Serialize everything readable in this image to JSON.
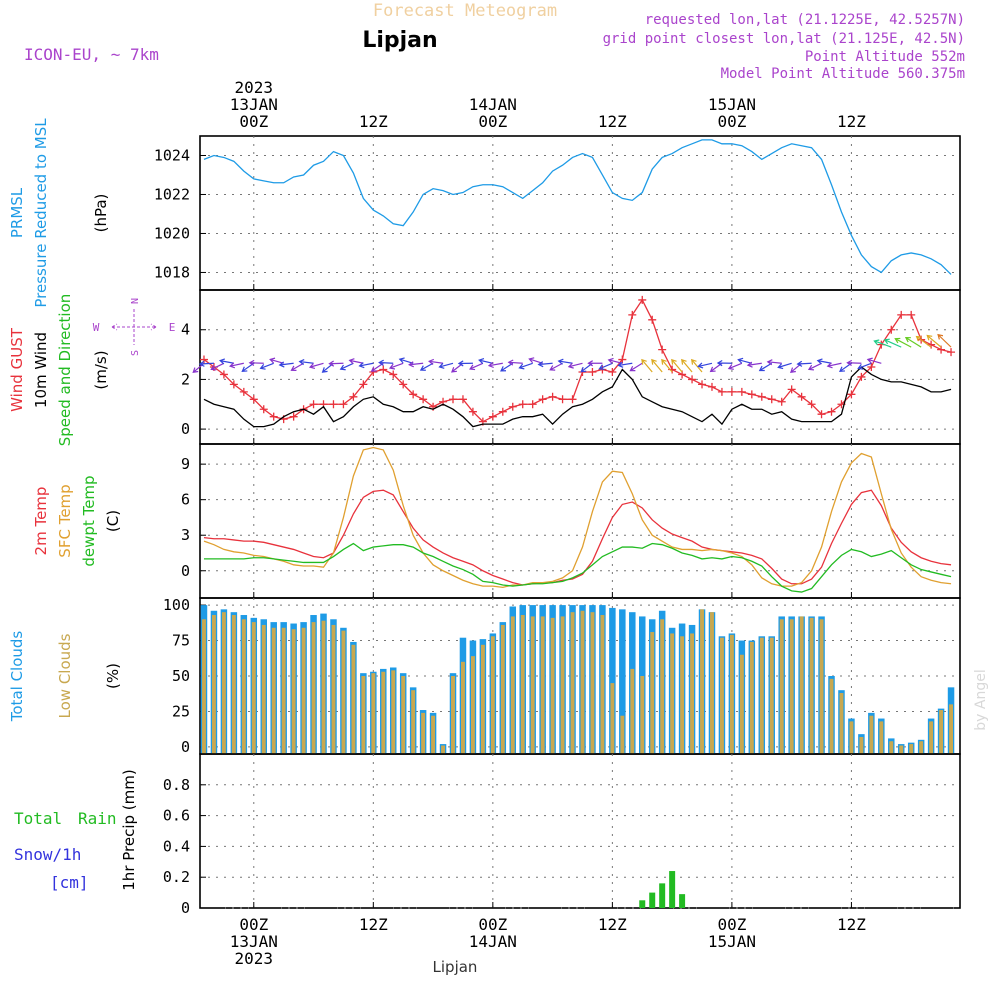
{
  "header": {
    "product": "Forecast Meteogram",
    "location": "Lipjan",
    "model": "ICON-EU, ~ 7km",
    "requested": "requested lon,lat (21.1225E, 42.5257N)",
    "gridpoint": "grid point closest lon,lat (21.125E, 42.5N)",
    "altitude": "Point Altitude 552m",
    "model_altitude": "Model Point Altitude 560.375m",
    "footer_location": "Lipjan",
    "watermark": "by Angel"
  },
  "time_axis": {
    "ticks": [
      {
        "h": 0,
        "lines": [
          "2023",
          "13JAN",
          "00Z"
        ],
        "bottom": [
          "00Z",
          "13JAN",
          "2023"
        ]
      },
      {
        "h": 12,
        "lines": [
          "12Z"
        ],
        "bottom": [
          "12Z"
        ]
      },
      {
        "h": 24,
        "lines": [
          "14JAN",
          "00Z"
        ],
        "bottom": [
          "00Z",
          "14JAN"
        ]
      },
      {
        "h": 36,
        "lines": [
          "12Z"
        ],
        "bottom": [
          "12Z"
        ]
      },
      {
        "h": 48,
        "lines": [
          "15JAN",
          "00Z"
        ],
        "bottom": [
          "00Z",
          "15JAN"
        ]
      },
      {
        "h": 60,
        "lines": [
          "12Z"
        ],
        "bottom": [
          "12Z"
        ]
      }
    ],
    "range_hours": [
      -5.4,
      70.9
    ]
  },
  "colors": {
    "prmsl": "#1e9be6",
    "gust": "#e8323c",
    "wind": "#000000",
    "wind_label": "#22bb22",
    "temp2m": "#e8323c",
    "sfc": "#e0a030",
    "dew": "#22bb22",
    "total_clouds": "#1e9be6",
    "low_clouds": "#c8a850",
    "rain": "#22bb22",
    "snow": "#3333dd",
    "purple": "#aa44cc"
  },
  "chart_data": [
    {
      "type": "line",
      "name": "pressure",
      "label_lines": [
        "PRMSL",
        "Pressure Reduced to MSL"
      ],
      "unit": "(hPa)",
      "ylim": [
        1017.1,
        1025.0
      ],
      "yticks": [
        1018,
        1020,
        1022,
        1024
      ],
      "x": [
        -5,
        -4,
        -3,
        -2,
        -1,
        0,
        1,
        2,
        3,
        4,
        5,
        6,
        7,
        8,
        9,
        10,
        11,
        12,
        13,
        14,
        15,
        16,
        17,
        18,
        19,
        20,
        21,
        22,
        23,
        24,
        25,
        26,
        27,
        28,
        29,
        30,
        31,
        32,
        33,
        34,
        35,
        36,
        37,
        38,
        39,
        40,
        41,
        42,
        43,
        44,
        45,
        46,
        47,
        48,
        49,
        50,
        51,
        52,
        53,
        54,
        55,
        56,
        57,
        58,
        59,
        60,
        61,
        62,
        63,
        64,
        65,
        66,
        67,
        68,
        69,
        70
      ],
      "series": [
        {
          "values": [
            1023.8,
            1024.0,
            1023.9,
            1023.7,
            1023.2,
            1022.8,
            1022.7,
            1022.6,
            1022.6,
            1022.9,
            1023.0,
            1023.5,
            1023.7,
            1024.2,
            1024.0,
            1023.1,
            1021.8,
            1021.2,
            1020.9,
            1020.5,
            1020.4,
            1021.1,
            1022.0,
            1022.3,
            1022.2,
            1022.0,
            1022.1,
            1022.4,
            1022.5,
            1022.5,
            1022.4,
            1022.1,
            1021.8,
            1022.2,
            1022.6,
            1023.2,
            1023.5,
            1023.9,
            1024.1,
            1023.9,
            1023.0,
            1022.1,
            1021.8,
            1021.7,
            1022.1,
            1023.3,
            1023.9,
            1024.1,
            1024.4,
            1024.6,
            1024.8,
            1024.8,
            1024.6,
            1024.6,
            1024.5,
            1024.2,
            1023.8,
            1024.1,
            1024.4,
            1024.6,
            1024.5,
            1024.4,
            1023.8,
            1022.5,
            1021.1,
            1019.9,
            1018.9,
            1018.3,
            1018.0,
            1018.6,
            1018.9,
            1019.0,
            1018.9,
            1018.7,
            1018.4,
            1017.9
          ]
        }
      ]
    },
    {
      "type": "line",
      "name": "wind",
      "label_lines": [
        "Wind GUST",
        "10m Wind",
        "Speed and Direction"
      ],
      "unit": "(m/s)",
      "compass": {
        "n": "N",
        "w": "W",
        "e": "E",
        "s": "S"
      },
      "ylim": [
        -0.6,
        5.6
      ],
      "yticks": [
        0,
        2,
        4
      ],
      "x": [
        -5,
        -4,
        -3,
        -2,
        -1,
        0,
        1,
        2,
        3,
        4,
        5,
        6,
        7,
        8,
        9,
        10,
        11,
        12,
        13,
        14,
        15,
        16,
        17,
        18,
        19,
        20,
        21,
        22,
        23,
        24,
        25,
        26,
        27,
        28,
        29,
        30,
        31,
        32,
        33,
        34,
        35,
        36,
        37,
        38,
        39,
        40,
        41,
        42,
        43,
        44,
        45,
        46,
        47,
        48,
        49,
        50,
        51,
        52,
        53,
        54,
        55,
        56,
        57,
        58,
        59,
        60,
        61,
        62,
        63,
        64,
        65,
        66,
        67,
        68,
        69,
        70
      ],
      "series": [
        {
          "name": "Wind GUST",
          "values": [
            2.8,
            2.5,
            2.2,
            1.8,
            1.5,
            1.2,
            0.8,
            0.5,
            0.4,
            0.5,
            0.8,
            1.0,
            1.0,
            1.0,
            1.0,
            1.3,
            1.8,
            2.3,
            2.4,
            2.2,
            1.8,
            1.4,
            1.2,
            0.9,
            1.1,
            1.2,
            1.2,
            0.7,
            0.3,
            0.5,
            0.7,
            0.9,
            1.0,
            1.0,
            1.2,
            1.3,
            1.2,
            1.2,
            2.3,
            2.3,
            2.4,
            2.3,
            2.8,
            4.6,
            5.2,
            4.4,
            3.2,
            2.4,
            2.2,
            2.0,
            1.8,
            1.7,
            1.5,
            1.5,
            1.5,
            1.4,
            1.3,
            1.2,
            1.1,
            1.6,
            1.3,
            1.0,
            0.6,
            0.7,
            1.0,
            1.4,
            2.1,
            2.5,
            3.4,
            4.0,
            4.6,
            4.6,
            3.6,
            3.4,
            3.2,
            3.1
          ]
        },
        {
          "name": "10m Wind",
          "values": [
            1.2,
            1.0,
            0.9,
            0.8,
            0.4,
            0.1,
            0.1,
            0.2,
            0.5,
            0.7,
            0.8,
            0.6,
            0.9,
            0.3,
            0.5,
            0.9,
            1.2,
            1.3,
            1.0,
            0.9,
            0.7,
            0.7,
            0.9,
            0.8,
            1.0,
            0.8,
            0.5,
            0.1,
            0.2,
            0.2,
            0.2,
            0.4,
            0.5,
            0.5,
            0.6,
            0.2,
            0.6,
            0.9,
            1.0,
            1.2,
            1.5,
            1.7,
            2.4,
            2.0,
            1.3,
            1.1,
            0.9,
            0.8,
            0.7,
            0.5,
            0.3,
            0.6,
            0.2,
            0.8,
            1.0,
            0.8,
            0.8,
            0.6,
            0.7,
            0.4,
            0.3,
            0.3,
            0.3,
            0.3,
            0.6,
            2.1,
            2.5,
            2.2,
            2.0,
            1.9,
            1.9,
            1.8,
            1.7,
            1.5,
            1.5,
            1.6
          ]
        }
      ]
    },
    {
      "type": "line",
      "name": "temperature",
      "label_lines": [
        "2m Temp",
        "SFC Temp",
        "dewpt Temp"
      ],
      "unit": "(C)",
      "ylim": [
        -2.3,
        10.7
      ],
      "yticks": [
        0,
        3,
        6,
        9
      ],
      "x": [
        -5,
        -4,
        -3,
        -2,
        -1,
        0,
        1,
        2,
        3,
        4,
        5,
        6,
        7,
        8,
        9,
        10,
        11,
        12,
        13,
        14,
        15,
        16,
        17,
        18,
        19,
        20,
        21,
        22,
        23,
        24,
        25,
        26,
        27,
        28,
        29,
        30,
        31,
        32,
        33,
        34,
        35,
        36,
        37,
        38,
        39,
        40,
        41,
        42,
        43,
        44,
        45,
        46,
        47,
        48,
        49,
        50,
        51,
        52,
        53,
        54,
        55,
        56,
        57,
        58,
        59,
        60,
        61,
        62,
        63,
        64,
        65,
        66,
        67,
        68,
        69,
        70
      ],
      "series": [
        {
          "name": "2m Temp",
          "values": [
            2.8,
            2.7,
            2.7,
            2.6,
            2.5,
            2.5,
            2.4,
            2.2,
            2.0,
            1.8,
            1.5,
            1.2,
            1.1,
            1.5,
            3.0,
            4.8,
            6.2,
            6.7,
            6.8,
            6.4,
            5.0,
            3.6,
            2.6,
            2.0,
            1.5,
            1.1,
            0.8,
            0.5,
            0.0,
            -0.4,
            -0.7,
            -1.0,
            -1.2,
            -1.1,
            -1.0,
            -1.0,
            -0.8,
            -0.7,
            -0.3,
            0.8,
            2.7,
            4.5,
            5.6,
            5.8,
            5.3,
            4.3,
            3.6,
            3.1,
            2.8,
            2.5,
            2.0,
            1.8,
            1.7,
            1.6,
            1.5,
            1.3,
            1.0,
            0.2,
            -0.7,
            -1.1,
            -1.1,
            -0.7,
            0.3,
            2.3,
            4.0,
            5.6,
            6.6,
            6.8,
            5.5,
            3.6,
            2.4,
            1.6,
            1.1,
            0.8,
            0.6,
            0.5
          ]
        },
        {
          "name": "SFC Temp",
          "values": [
            2.5,
            2.2,
            1.8,
            1.6,
            1.5,
            1.3,
            1.2,
            1.0,
            0.8,
            0.5,
            0.4,
            0.4,
            0.3,
            1.5,
            4.5,
            8.0,
            10.2,
            10.4,
            10.2,
            8.5,
            5.5,
            3.0,
            1.5,
            0.5,
            0.0,
            -0.4,
            -0.8,
            -1.1,
            -1.3,
            -1.3,
            -1.4,
            -1.2,
            -1.2,
            -1.0,
            -1.0,
            -0.9,
            -0.6,
            0.0,
            2.0,
            5.0,
            7.5,
            8.4,
            8.3,
            6.5,
            4.3,
            3.0,
            2.5,
            2.0,
            1.8,
            1.8,
            1.7,
            1.8,
            1.7,
            1.5,
            1.2,
            0.5,
            -0.6,
            -1.1,
            -1.3,
            -1.3,
            -1.0,
            0.0,
            2.0,
            5.0,
            7.5,
            9.1,
            9.9,
            9.6,
            6.5,
            3.5,
            1.5,
            0.3,
            -0.5,
            -0.8,
            -1.0,
            -1.1
          ]
        },
        {
          "name": "dewpt Temp",
          "values": [
            1.0,
            1.0,
            1.0,
            1.0,
            1.0,
            1.1,
            1.1,
            1.0,
            0.9,
            0.8,
            0.7,
            0.7,
            0.7,
            1.2,
            1.8,
            2.3,
            1.7,
            2.0,
            2.1,
            2.2,
            2.2,
            2.0,
            1.5,
            1.2,
            0.8,
            0.4,
            0.1,
            -0.3,
            -0.9,
            -1.0,
            -1.2,
            -1.3,
            -1.2,
            -1.1,
            -1.1,
            -1.0,
            -0.9,
            -0.6,
            -0.2,
            0.5,
            1.2,
            1.6,
            2.0,
            2.0,
            1.9,
            2.3,
            2.2,
            1.9,
            1.5,
            1.3,
            1.0,
            1.1,
            1.0,
            1.2,
            1.1,
            0.8,
            0.4,
            -0.5,
            -1.3,
            -1.7,
            -1.8,
            -1.5,
            -0.5,
            0.5,
            1.3,
            1.8,
            1.6,
            1.2,
            1.4,
            1.7,
            1.1,
            0.5,
            0.1,
            -0.1,
            -0.3,
            -0.5
          ]
        }
      ]
    },
    {
      "type": "bar",
      "name": "clouds",
      "label_lines": [
        "Total Clouds",
        "Low Clouds"
      ],
      "unit": "(%)",
      "ylim": [
        -5,
        105
      ],
      "yticks": [
        0,
        25,
        50,
        75,
        100
      ],
      "x": [
        -5,
        -4,
        -3,
        -2,
        -1,
        0,
        1,
        2,
        3,
        4,
        5,
        6,
        7,
        8,
        9,
        10,
        11,
        12,
        13,
        14,
        15,
        16,
        17,
        18,
        19,
        20,
        21,
        22,
        23,
        24,
        25,
        26,
        27,
        28,
        29,
        30,
        31,
        32,
        33,
        34,
        35,
        36,
        37,
        38,
        39,
        40,
        41,
        42,
        43,
        44,
        45,
        46,
        47,
        48,
        49,
        50,
        51,
        52,
        53,
        54,
        55,
        56,
        57,
        58,
        59,
        60,
        61,
        62,
        63,
        64,
        65,
        66,
        67,
        68,
        69,
        70
      ],
      "series": [
        {
          "name": "Total Clouds",
          "values": [
            100,
            96,
            97,
            95,
            93,
            91,
            90,
            88,
            88,
            87,
            88,
            93,
            94,
            90,
            84,
            74,
            52,
            53,
            55,
            56,
            52,
            42,
            26,
            24,
            2,
            52,
            77,
            75,
            76,
            80,
            88,
            99,
            100,
            100,
            100,
            100,
            100,
            100,
            100,
            100,
            100,
            98,
            97,
            95,
            92,
            90,
            96,
            84,
            87,
            86,
            97,
            95,
            78,
            80,
            75,
            75,
            78,
            78,
            92,
            92,
            92,
            92,
            92,
            50,
            40,
            20,
            9,
            24,
            20,
            6,
            2,
            3,
            5,
            20,
            27,
            42
          ]
        },
        {
          "name": "Low Clouds",
          "values": [
            90,
            93,
            95,
            93,
            90,
            88,
            86,
            84,
            84,
            83,
            84,
            88,
            89,
            86,
            82,
            72,
            50,
            52,
            53,
            54,
            50,
            40,
            24,
            22,
            1,
            50,
            60,
            64,
            72,
            78,
            86,
            92,
            93,
            92,
            92,
            91,
            92,
            95,
            96,
            95,
            93,
            45,
            22,
            55,
            50,
            81,
            90,
            80,
            78,
            80,
            97,
            95,
            77,
            79,
            65,
            74,
            77,
            77,
            90,
            90,
            92,
            91,
            90,
            48,
            38,
            18,
            7,
            22,
            18,
            4,
            1,
            2,
            4,
            18,
            26,
            30
          ]
        }
      ]
    },
    {
      "type": "bar",
      "name": "precip",
      "label_lines": [
        "Total Rain",
        "Snow/1h",
        "[cm]"
      ],
      "unit": "1hr Precip (mm)",
      "ylim": [
        0,
        1.0
      ],
      "yticks": [
        0,
        0.2,
        0.4,
        0.6,
        0.8
      ],
      "x": [
        39,
        40,
        41,
        42,
        43,
        44
      ],
      "series": [
        {
          "name": "Total Rain",
          "values": [
            0.05,
            0.1,
            0.16,
            0.24,
            0.09,
            0.0
          ]
        }
      ]
    }
  ]
}
